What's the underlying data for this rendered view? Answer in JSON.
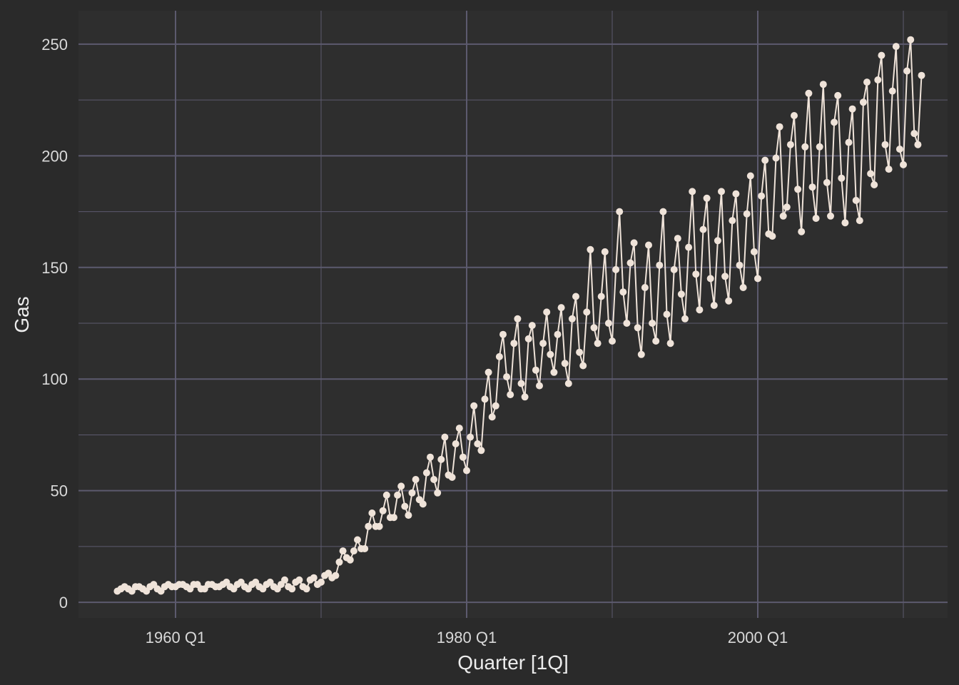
{
  "chart_data": {
    "type": "line",
    "xlabel": "Quarter [1Q]",
    "ylabel": "Gas",
    "ylim": [
      -7,
      265
    ],
    "y_ticks": [
      0,
      50,
      100,
      150,
      200,
      250
    ],
    "y_tick_labels": [
      "0",
      "50",
      "100",
      "150",
      "200",
      "250"
    ],
    "x_ticks": [
      "1960 Q1",
      "1980 Q1",
      "2000 Q1"
    ],
    "x_start": "1956 Q1",
    "x_end": "2010 Q2",
    "grid": true,
    "markers": true,
    "colors": {
      "background": "#2a2a2a",
      "panel": "#2e2e2e",
      "grid": "#5c5a6e",
      "series": "#efe3d9"
    },
    "series": [
      {
        "values": [
          5,
          6,
          7,
          6,
          5,
          7,
          7,
          6,
          5,
          7,
          8,
          6,
          5,
          7,
          8,
          7,
          7,
          8,
          8,
          7,
          6,
          8,
          8,
          6,
          6,
          8,
          8,
          7,
          7,
          8,
          9,
          7,
          6,
          8,
          9,
          7,
          6,
          8,
          9,
          7,
          6,
          8,
          9,
          7,
          6,
          8,
          10,
          7,
          6,
          9,
          10,
          7,
          6,
          10,
          11,
          8,
          9,
          12,
          13,
          11,
          12,
          18,
          23,
          20,
          19,
          23,
          28,
          24,
          24,
          34,
          40,
          34,
          34,
          41,
          48,
          38,
          38,
          48,
          52,
          43,
          39,
          49,
          55,
          46,
          44,
          58,
          65,
          55,
          49,
          64,
          74,
          57,
          56,
          71,
          78,
          65,
          59,
          74,
          88,
          71,
          68,
          91,
          103,
          83,
          88,
          110,
          120,
          101,
          93,
          116,
          127,
          98,
          92,
          118,
          124,
          104,
          97,
          116,
          130,
          111,
          103,
          120,
          132,
          107,
          98,
          127,
          137,
          112,
          106,
          130,
          158,
          123,
          116,
          137,
          157,
          125,
          117,
          149,
          175,
          139,
          125,
          152,
          161,
          123,
          111,
          141,
          160,
          125,
          117,
          151,
          175,
          129,
          116,
          149,
          163,
          138,
          127,
          159,
          184,
          147,
          131,
          167,
          181,
          145,
          133,
          162,
          184,
          146,
          135,
          171,
          183,
          151,
          141,
          174,
          191,
          157,
          145,
          182,
          198,
          165,
          164,
          199,
          213,
          173,
          177,
          205,
          218,
          185,
          166,
          204,
          228,
          186,
          172,
          204,
          232,
          188,
          173,
          215,
          227,
          190,
          170,
          206,
          221,
          180,
          171,
          224,
          233,
          192,
          187,
          234,
          245,
          205,
          194,
          229,
          249,
          203,
          196,
          238,
          252,
          210,
          205,
          236
        ]
      }
    ]
  }
}
